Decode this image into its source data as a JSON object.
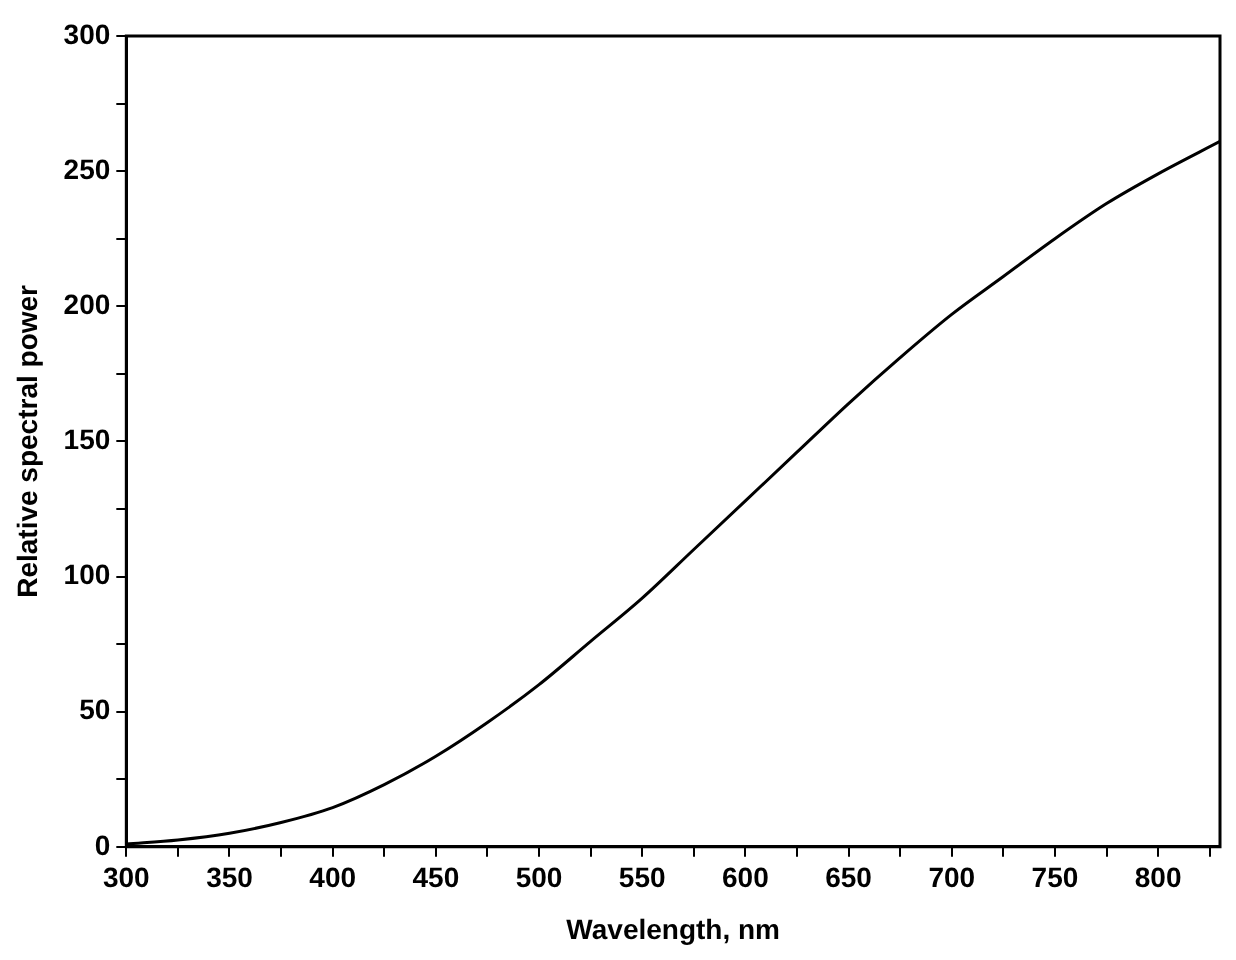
{
  "chart_data": {
    "type": "line",
    "xlabel": "Wavelength, nm",
    "ylabel": "Relative spectral power",
    "x": [
      300,
      325,
      350,
      375,
      400,
      425,
      450,
      475,
      500,
      525,
      550,
      575,
      600,
      625,
      650,
      675,
      700,
      725,
      750,
      775,
      800,
      830
    ],
    "series": [
      {
        "color": "#000000",
        "values": [
          1,
          2.5,
          5,
          9,
          14.5,
          23,
          33.5,
          46,
          60,
          76,
          92,
          110,
          128,
          146,
          164,
          181,
          197,
          211,
          225,
          238,
          249,
          261
        ]
      }
    ],
    "xlim": [
      300,
      830
    ],
    "xticks": [
      300,
      {
        "value": 325,
        "label": null
      },
      350,
      {
        "value": 375,
        "label": null
      },
      400,
      {
        "value": 425,
        "label": null
      },
      450,
      {
        "value": 475,
        "label": null
      },
      500,
      {
        "value": 525,
        "label": null
      },
      550,
      {
        "value": 575,
        "label": null
      },
      600,
      {
        "value": 625,
        "label": null
      },
      650,
      {
        "value": 675,
        "label": null
      },
      700,
      {
        "value": 725,
        "label": null
      },
      750,
      {
        "value": 775,
        "label": null
      },
      800,
      {
        "value": 825,
        "label": null
      }
    ],
    "ylim": [
      0,
      300
    ],
    "yticks": [
      0,
      {
        "value": 25,
        "label": null
      },
      50,
      {
        "value": 75,
        "label": null
      },
      100,
      {
        "value": 125,
        "label": null
      },
      150,
      {
        "value": 175,
        "label": null
      },
      200,
      {
        "value": 225,
        "label": null
      },
      250,
      {
        "value": 275,
        "label": null
      },
      300
    ],
    "grid": false,
    "legend": false,
    "marker": "none",
    "line_style": "solid"
  }
}
